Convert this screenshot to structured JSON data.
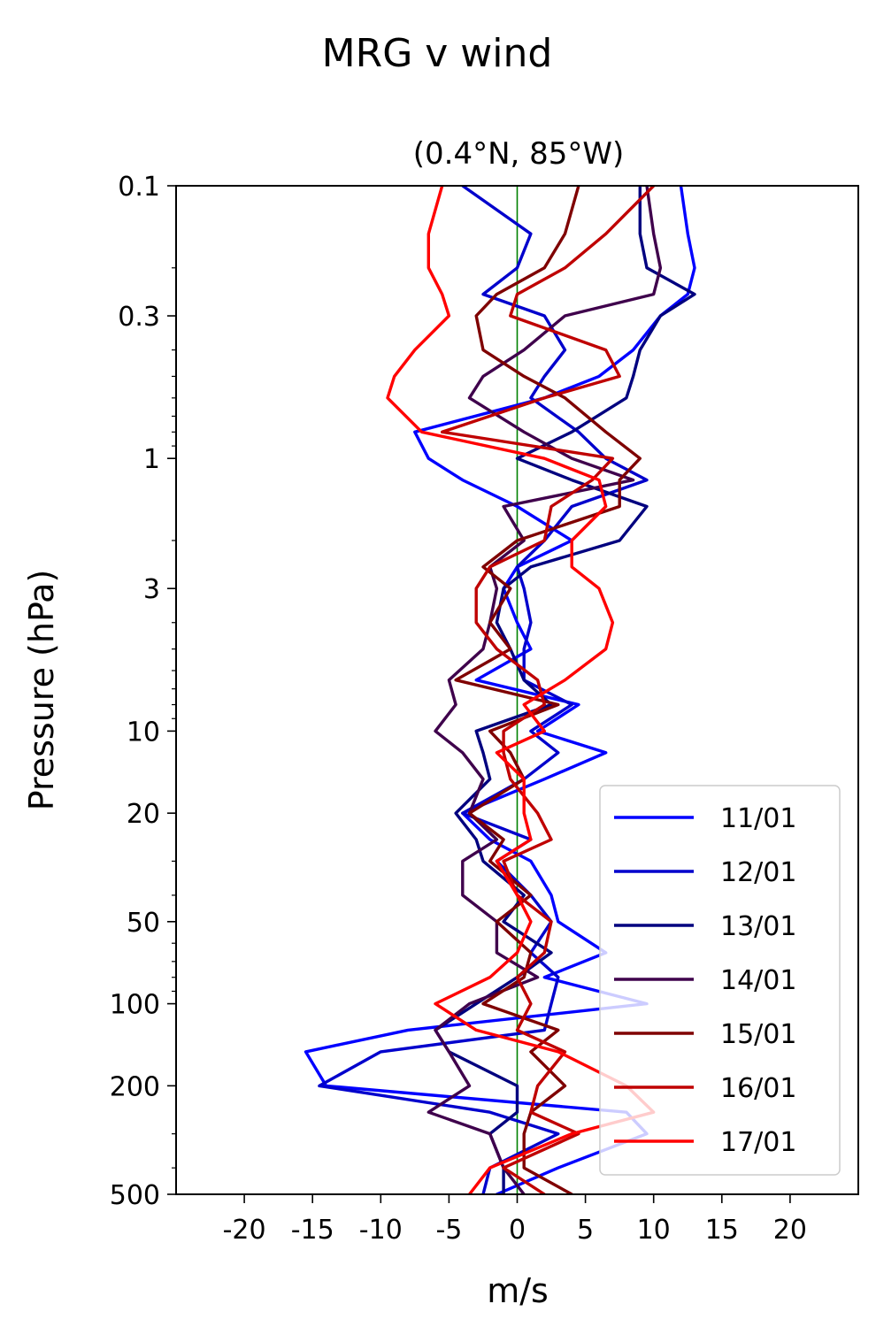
{
  "chart_data": {
    "type": "line",
    "suptitle": "MRG v wind",
    "title": "(0.4°N, 85°W)",
    "xlabel": "m/s",
    "ylabel": "Pressure (hPa)",
    "xlim": [
      -25,
      25
    ],
    "ylim": [
      500,
      0.1
    ],
    "yscale": "log",
    "x_ticks": [
      -20,
      -15,
      -10,
      -5,
      0,
      5,
      10,
      15,
      20
    ],
    "x_ticklabels": [
      "-20",
      "-15",
      "-10",
      "-5",
      "0",
      "5",
      "10",
      "15",
      "20"
    ],
    "y_ticks": [
      0.1,
      0.3,
      1,
      3,
      10,
      20,
      50,
      100,
      200,
      500
    ],
    "y_ticklabels": [
      "0.1",
      "0.3",
      "1",
      "3",
      "10",
      "20",
      "50",
      "100",
      "200",
      "500"
    ],
    "zero_line": {
      "x": 0,
      "color": "#008000"
    },
    "grid": false,
    "legend_position": "lower-right",
    "pressure_levels": [
      500,
      400,
      300,
      250,
      200,
      150,
      125,
      100,
      80,
      65,
      50,
      40,
      30,
      25,
      20,
      15,
      12,
      10,
      8,
      6.5,
      5,
      4,
      3,
      2.5,
      2,
      1.5,
      1.2,
      1,
      0.8,
      0.6,
      0.5,
      0.4,
      0.3,
      0.25,
      0.2,
      0.15,
      0.1
    ],
    "series": [
      {
        "name": "11/01",
        "color": "#0000ff",
        "values": [
          -1.5,
          3,
          9.5,
          8,
          -14,
          -15.5,
          -8,
          9.5,
          2,
          6.5,
          3,
          2.5,
          1,
          -2,
          -4,
          2,
          6.5,
          1.5,
          4.5,
          -3,
          1,
          0,
          -1,
          0,
          4,
          0,
          -4,
          -6.5,
          -7.5,
          2,
          6,
          8.5,
          10.5,
          12.5,
          13,
          12.5,
          12
        ]
      },
      {
        "name": "12/01",
        "color": "#0000cc",
        "values": [
          -2.5,
          -2,
          3,
          -2,
          -14.5,
          -10,
          2,
          2.5,
          3,
          1,
          2.5,
          1,
          -1.5,
          1,
          -4,
          0.5,
          3,
          1,
          4,
          0.5,
          0.5,
          1,
          0.5,
          0,
          2,
          4,
          9.5,
          6.5,
          4.5,
          1,
          2,
          3.5,
          2,
          -2.5,
          0,
          1,
          -4
        ]
      },
      {
        "name": "13/01",
        "color": "#00007f",
        "values": [
          -1,
          -1,
          -2,
          0,
          0,
          -5,
          -6,
          -3,
          0,
          2.5,
          -1,
          0.5,
          -2.5,
          -3,
          -4.5,
          -2,
          -2.5,
          -3,
          2.5,
          0.5,
          -0.5,
          -1.5,
          -1,
          1,
          7.5,
          9.5,
          4,
          0,
          4,
          8,
          8.5,
          9,
          10.5,
          13,
          9.5,
          9,
          9
        ]
      },
      {
        "name": "14/01",
        "color": "#3f004c",
        "values": [
          0.5,
          -1,
          -2,
          -6.5,
          -3.5,
          -5,
          -6,
          -3.5,
          1.5,
          -1.5,
          -1.5,
          -4,
          -4,
          -1.5,
          -3.5,
          -2.5,
          -4,
          -6,
          -4.5,
          -5,
          -2.5,
          -2,
          -1.5,
          -2,
          0.5,
          -1,
          8.5,
          4,
          0.5,
          -3.5,
          -2.5,
          0.5,
          3.5,
          10,
          10.5,
          10,
          9.5
        ]
      },
      {
        "name": "15/01",
        "color": "#7f0000",
        "values": [
          4,
          0.5,
          0.5,
          1,
          3.5,
          1,
          3,
          -2.5,
          0.5,
          1,
          -1.5,
          1,
          -2,
          -1,
          -3.5,
          0.5,
          -0.5,
          -2,
          3,
          -4.5,
          -0.5,
          -2,
          -0.5,
          -2.5,
          0,
          7.5,
          7.5,
          9,
          6.5,
          3.5,
          0.5,
          -2.5,
          -3,
          -1.5,
          2,
          3.5,
          4.5
        ]
      },
      {
        "name": "16/01",
        "color": "#bf0000",
        "values": [
          2,
          -1,
          4.5,
          1,
          1.5,
          3.5,
          0,
          1,
          0,
          2,
          2.5,
          0,
          -1,
          2.5,
          1.5,
          -0.5,
          -1,
          -1,
          2,
          1.5,
          -1.5,
          -3,
          -3,
          -2,
          2,
          2.5,
          5.5,
          7,
          -5.5,
          2,
          7.5,
          6.5,
          -0.5,
          0,
          3.5,
          6.5,
          10
        ]
      },
      {
        "name": "17/01",
        "color": "#ff0000",
        "values": [
          -3.5,
          -2,
          4,
          10,
          8,
          3,
          -3,
          -6,
          -2,
          0,
          1,
          0,
          -1.5,
          1,
          0.5,
          0.5,
          -1.5,
          2,
          0.5,
          3.5,
          6.5,
          7,
          6,
          4,
          4,
          6.5,
          6,
          2,
          -7,
          -9.5,
          -9,
          -7.5,
          -5,
          -5.5,
          -6.5,
          -6.5,
          -5.5
        ]
      }
    ]
  }
}
